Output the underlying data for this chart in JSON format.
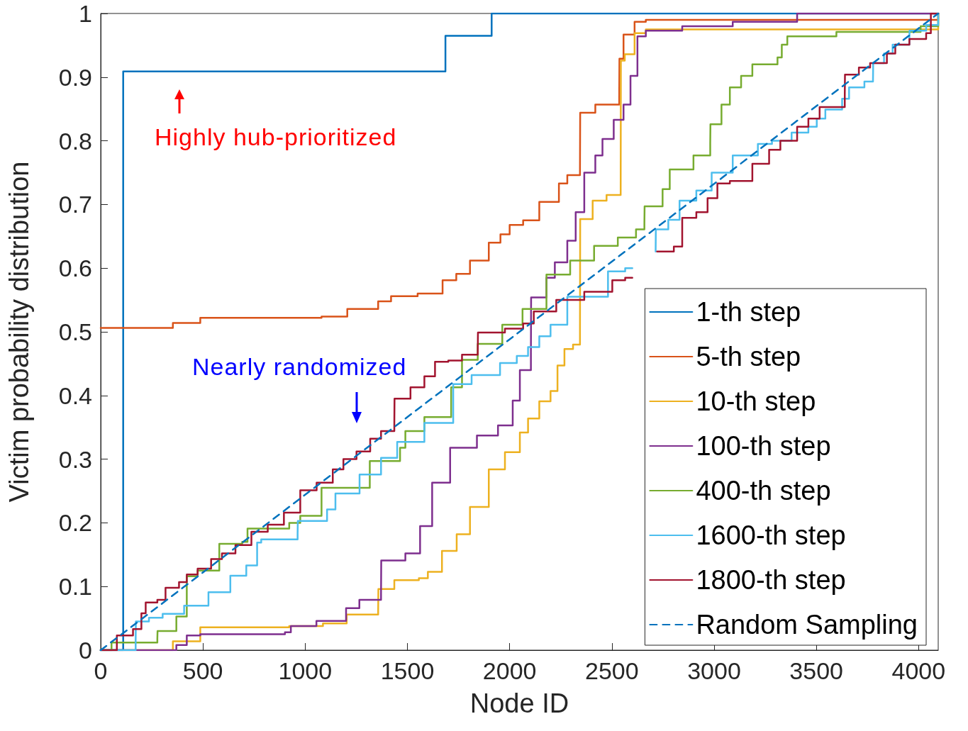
{
  "chart_data": {
    "type": "step",
    "xlabel": "Node ID",
    "ylabel": "Victim probability distribution",
    "xlim": [
      0,
      4096
    ],
    "xticks": [
      0,
      500,
      1000,
      1500,
      2000,
      2500,
      3000,
      3500,
      4000
    ],
    "ylim": [
      0,
      1
    ],
    "yticks": [
      0,
      0.1,
      0.2,
      0.3,
      0.4,
      0.5,
      0.6,
      0.7,
      0.8,
      0.9,
      1
    ],
    "grid": false,
    "legend": "bottom right",
    "marker": "none",
    "annotations": [
      "Highly hub-prioritized",
      "Nearly randomized"
    ],
    "series": [
      {
        "name": "1-th step",
        "color": "#0072bd",
        "x": [
          0,
          110,
          1686,
          1912,
          4096
        ],
        "values": [
          0,
          0.909,
          0.965,
          1,
          1
        ]
      },
      {
        "name": "5-th step",
        "color": "#d95319",
        "x": [
          0,
          353,
          487,
          1080,
          1206,
          1357,
          1420,
          1550,
          1672,
          1739,
          1806,
          1898,
          1955,
          2000,
          2066,
          2145,
          2241,
          2282,
          2344,
          2345,
          2419,
          2536,
          2537,
          2557,
          2611,
          2666,
          4090,
          4096
        ],
        "values": [
          0.506,
          0.514,
          0.522,
          0.524,
          0.536,
          0.548,
          0.556,
          0.56,
          0.581,
          0.591,
          0.612,
          0.64,
          0.653,
          0.668,
          0.675,
          0.704,
          0.733,
          0.746,
          0.756,
          0.844,
          0.857,
          0.867,
          0.929,
          0.967,
          0.987,
          0.99,
          0.99,
          1
        ]
      },
      {
        "name": "10-th step",
        "color": "#edb120",
        "x": [
          0,
          353,
          487,
          922,
          1087,
          1203,
          1357,
          1358,
          1436,
          1556,
          1600,
          1669,
          1741,
          1806,
          1898,
          1977,
          2050,
          2090,
          2145,
          2200,
          2234,
          2268,
          2310,
          2344,
          2345,
          2406,
          2474,
          2543,
          2544,
          2563,
          2611,
          2666,
          4060,
          4096
        ],
        "values": [
          0,
          0.014,
          0.036,
          0.038,
          0.042,
          0.056,
          0.06,
          0.096,
          0.11,
          0.113,
          0.123,
          0.156,
          0.182,
          0.225,
          0.284,
          0.311,
          0.342,
          0.364,
          0.391,
          0.407,
          0.447,
          0.473,
          0.48,
          0.498,
          0.677,
          0.706,
          0.715,
          0.724,
          0.926,
          0.936,
          0.969,
          0.975,
          0.975,
          1
        ]
      },
      {
        "name": "100-th step",
        "color": "#7e2f8e",
        "x": [
          0,
          370,
          421,
          487,
          901,
          930,
          1055,
          1200,
          1265,
          1371,
          1372,
          1490,
          1562,
          1621,
          1709,
          1840,
          1943,
          2015,
          2050,
          2104,
          2105,
          2180,
          2221,
          2282,
          2323,
          2365,
          2419,
          2454,
          2509,
          2557,
          2591,
          2625,
          2666,
          2844,
          3091,
          3406,
          4096
        ],
        "values": [
          0,
          0.008,
          0.023,
          0.025,
          0.028,
          0.038,
          0.046,
          0.066,
          0.079,
          0.088,
          0.141,
          0.152,
          0.195,
          0.263,
          0.318,
          0.337,
          0.353,
          0.392,
          0.44,
          0.467,
          0.554,
          0.585,
          0.609,
          0.643,
          0.688,
          0.75,
          0.777,
          0.803,
          0.833,
          0.857,
          0.902,
          0.964,
          0.973,
          0.98,
          0.987,
          1,
          1
        ]
      },
      {
        "name": "400-th step",
        "color": "#77ac30",
        "x": [
          0,
          53,
          277,
          278,
          370,
          421,
          474,
          580,
          692,
          718,
          922,
          976,
          1080,
          1316,
          1464,
          1490,
          1583,
          1714,
          1767,
          1844,
          1964,
          2063,
          2180,
          2296,
          2413,
          2529,
          2618,
          2659,
          2660,
          2748,
          2783,
          2899,
          2981,
          2982,
          3036,
          3077,
          3132,
          3187,
          3310,
          3331,
          3358,
          3598,
          4010,
          4096
        ],
        "values": [
          0,
          0.012,
          0.018,
          0.03,
          0.053,
          0.116,
          0.125,
          0.167,
          0.17,
          0.191,
          0.2,
          0.211,
          0.255,
          0.297,
          0.318,
          0.344,
          0.366,
          0.413,
          0.456,
          0.481,
          0.511,
          0.536,
          0.59,
          0.612,
          0.635,
          0.648,
          0.661,
          0.67,
          0.697,
          0.724,
          0.755,
          0.777,
          0.795,
          0.826,
          0.857,
          0.884,
          0.902,
          0.92,
          0.931,
          0.951,
          0.964,
          0.971,
          0.98,
          1
        ]
      },
      {
        "name": "1600-th step",
        "color": "#4dbeee",
        "x": [
          0,
          171,
          172,
          236,
          303,
          408,
          527,
          634,
          712,
          765,
          785,
          963,
          964,
          1107,
          1148,
          1266,
          1371,
          1450,
          1583,
          1724,
          1814,
          1953,
          2035,
          2090,
          2145,
          2200,
          2282,
          2481,
          2565,
          2600,
          2714,
          2715,
          2776,
          2831,
          2913,
          2988,
          3091,
          3214,
          3283,
          3379,
          3461,
          3502,
          3544,
          3626,
          3660,
          3735,
          3777,
          3778,
          3831,
          3873,
          3955,
          3956,
          4037,
          4096
        ],
        "values": [
          0,
          0.016,
          0.045,
          0.051,
          0.057,
          0.07,
          0.091,
          0.117,
          0.133,
          0.169,
          0.174,
          0.183,
          0.203,
          0.221,
          0.246,
          0.276,
          0.302,
          0.327,
          0.357,
          0.418,
          0.432,
          0.451,
          0.462,
          0.476,
          0.493,
          0.511,
          0.555,
          0.595,
          0.6,
          null,
          0.626,
          0.661,
          0.676,
          0.706,
          0.722,
          0.75,
          0.777,
          0.795,
          0.8,
          0.813,
          0.822,
          0.835,
          0.849,
          0.866,
          0.884,
          0.893,
          0.895,
          0.922,
          0.937,
          0.951,
          0.962,
          0.973,
          0.982,
          1
        ]
      },
      {
        "name": "1800-th step",
        "color": "#a2142f",
        "x": [
          0,
          79,
          158,
          199,
          220,
          277,
          317,
          383,
          421,
          474,
          540,
          593,
          659,
          737,
          817,
          896,
          976,
          1056,
          1135,
          1187,
          1251,
          1318,
          1371,
          1436,
          1437,
          1515,
          1583,
          1635,
          1700,
          1767,
          1844,
          1845,
          1977,
          2066,
          2118,
          2228,
          2365,
          2502,
          2565,
          2600,
          2721,
          2803,
          2844,
          2913,
          2968,
          3016,
          3077,
          3187,
          3269,
          3324,
          3406,
          3461,
          3516,
          3639,
          3640,
          3708,
          3763,
          3845,
          3886,
          3955,
          4037,
          4060,
          4096
        ],
        "values": [
          0,
          0.023,
          0.033,
          0.058,
          0.075,
          0.079,
          0.098,
          0.107,
          0.119,
          0.128,
          0.143,
          0.152,
          0.165,
          0.186,
          0.197,
          0.216,
          0.251,
          0.263,
          0.284,
          0.3,
          0.312,
          0.332,
          0.344,
          0.356,
          0.395,
          0.413,
          0.43,
          0.453,
          0.455,
          0.464,
          0.467,
          0.499,
          0.505,
          0.513,
          0.532,
          0.55,
          0.563,
          0.581,
          0.585,
          null,
          0.626,
          0.634,
          0.679,
          0.688,
          0.71,
          0.733,
          0.737,
          0.764,
          0.786,
          0.8,
          0.822,
          0.835,
          0.853,
          0.871,
          0.904,
          0.915,
          0.922,
          0.937,
          0.951,
          0.96,
          0.969,
          1,
          1
        ]
      },
      {
        "name": "Random Sampling",
        "type": "line",
        "line_style": "dashed",
        "color": "#0072bd",
        "x": [
          0,
          4096
        ],
        "values": [
          0,
          1
        ]
      }
    ]
  }
}
